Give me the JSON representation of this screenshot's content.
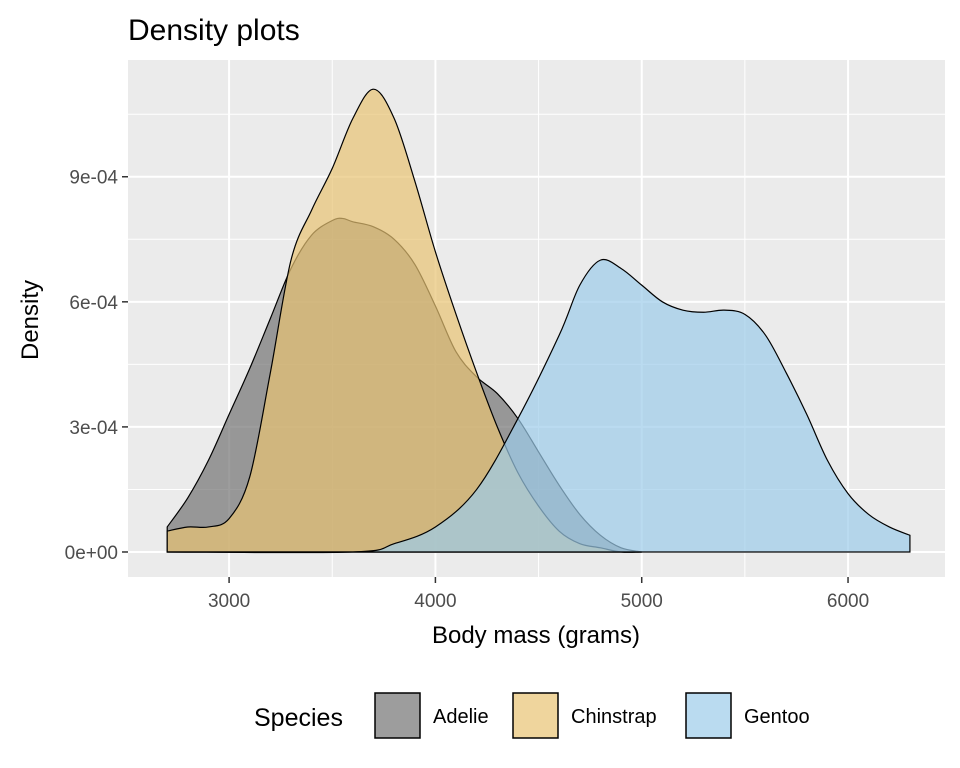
{
  "chart_data": {
    "type": "area",
    "subtype": "density",
    "title": "Density plots",
    "xlabel": "Body mass (grams)",
    "ylabel": "Density",
    "xlim": [
      2510,
      6470
    ],
    "ylim": [
      -6e-05,
      0.00118
    ],
    "x_ticks": [
      3000,
      4000,
      5000,
      6000
    ],
    "x_tick_labels": [
      "3000",
      "4000",
      "5000",
      "6000"
    ],
    "y_ticks": [
      0,
      0.0003,
      0.0006,
      0.0009
    ],
    "y_tick_labels": [
      "0e+00",
      "3e-04",
      "6e-04",
      "9e-04"
    ],
    "grid": true,
    "panel_background": "#EBEBEB",
    "legend": {
      "title": "Species",
      "position": "bottom",
      "entries": [
        "Adelie",
        "Chinstrap",
        "Gentoo"
      ]
    },
    "series": [
      {
        "name": "Adelie",
        "color": "#737373",
        "x": [
          2700,
          2800,
          2900,
          3000,
          3100,
          3200,
          3300,
          3400,
          3500,
          3550,
          3600,
          3700,
          3800,
          3900,
          4000,
          4100,
          4200,
          4300,
          4400,
          4500,
          4600,
          4700,
          4800,
          4900,
          5000
        ],
        "y": [
          6e-05,
          0.00013,
          0.00022,
          0.00033,
          0.00044,
          0.00056,
          0.00068,
          0.00076,
          0.000795,
          0.0008,
          0.000792,
          0.00078,
          0.00075,
          0.00069,
          0.00059,
          0.00048,
          0.00042,
          0.00038,
          0.00032,
          0.00024,
          0.00016,
          9e-05,
          4e-05,
          1e-05,
          0.0
        ]
      },
      {
        "name": "Chinstrap",
        "color": "#E8C373",
        "x": [
          2700,
          2800,
          2900,
          3000,
          3100,
          3200,
          3300,
          3400,
          3500,
          3600,
          3700,
          3800,
          3900,
          4000,
          4100,
          4200,
          4300,
          4400,
          4500,
          4600,
          4700,
          4800,
          4900,
          5000
        ],
        "y": [
          5e-05,
          6e-05,
          6e-05,
          8e-05,
          0.00018,
          0.00043,
          0.0007,
          0.00082,
          0.00092,
          0.00104,
          0.00111,
          0.00104,
          0.00089,
          0.00072,
          0.00057,
          0.00043,
          0.0003,
          0.00019,
          0.00011,
          5e-05,
          2e-05,
          1e-05,
          0.0,
          0.0
        ]
      },
      {
        "name": "Gentoo",
        "color": "#9DCCE9",
        "x": [
          2700,
          3600,
          3800,
          4000,
          4200,
          4400,
          4600,
          4700,
          4800,
          4900,
          5000,
          5100,
          5200,
          5300,
          5400,
          5500,
          5600,
          5700,
          5800,
          5900,
          6000,
          6100,
          6200,
          6300
        ],
        "y": [
          0.0,
          0.0,
          2e-05,
          6e-05,
          0.00015,
          0.00032,
          0.00052,
          0.00064,
          0.0007,
          0.00068,
          0.00064,
          0.0006,
          0.00058,
          0.000575,
          0.00058,
          0.00057,
          0.00052,
          0.00043,
          0.00033,
          0.00022,
          0.00014,
          9e-05,
          6e-05,
          4e-05
        ]
      }
    ]
  }
}
